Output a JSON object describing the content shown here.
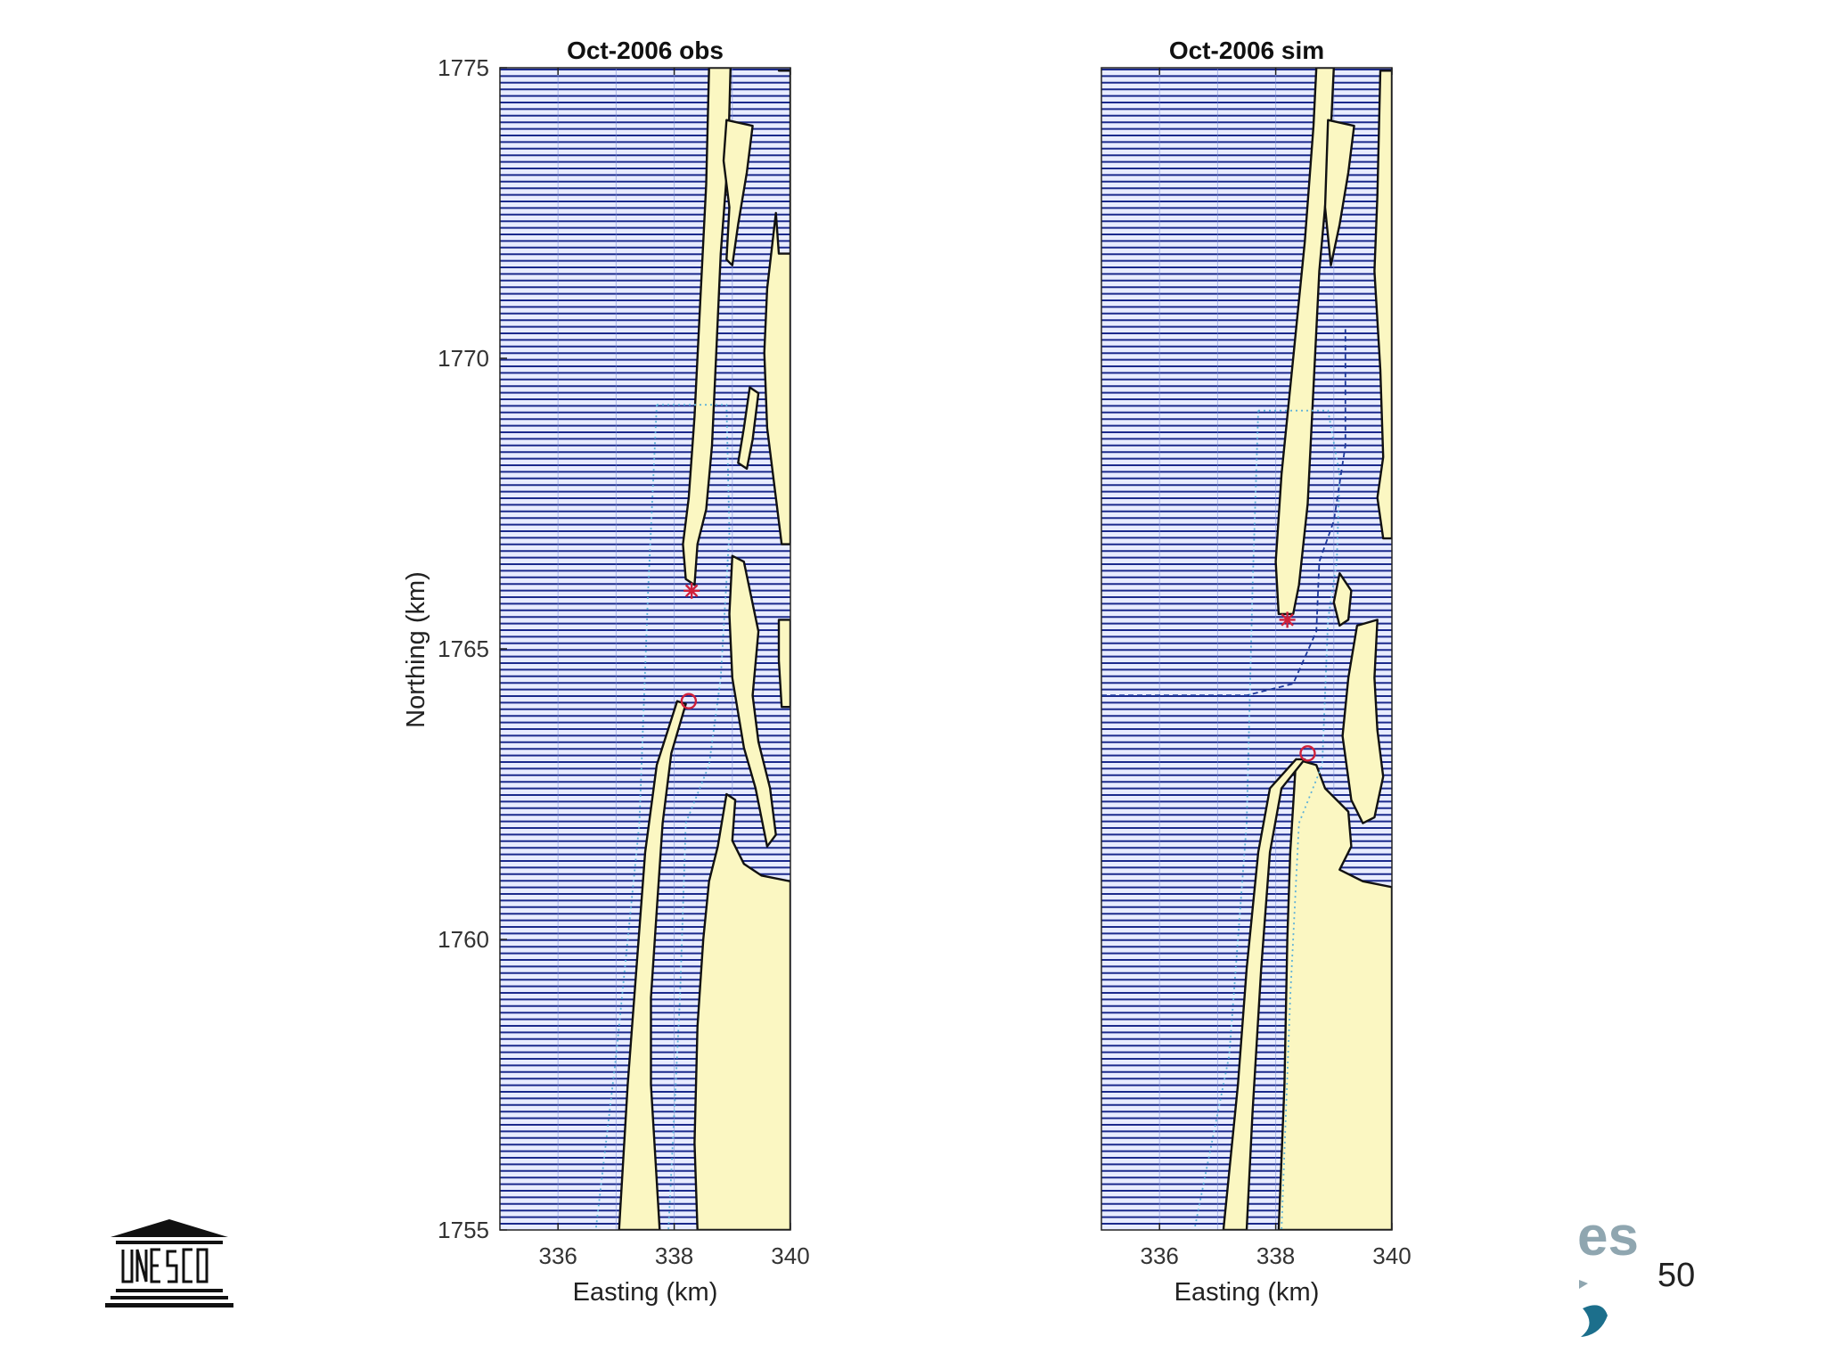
{
  "slide": {
    "page_number": "50",
    "logo_left_text": "UNESCO",
    "logo_right_text": "es"
  },
  "colors": {
    "water": "#1b2a8c",
    "water_background": "#e8ecff",
    "land": "#fbf7c2",
    "coastline": "#111111",
    "track": "#5fb2d8",
    "track_sim": "#1f3a9c",
    "marker": "#d0203a"
  },
  "chart_data": [
    {
      "type": "map",
      "title": "Oct-2006 obs",
      "xlabel": "Easting (km)",
      "ylabel": "Northing (km)",
      "xlim": [
        335,
        340
      ],
      "ylim": [
        1755,
        1775
      ],
      "xticks": [
        "336",
        "338",
        "340"
      ],
      "yticks": [
        "1755",
        "1760",
        "1765",
        "1770",
        "1775"
      ],
      "grid": false,
      "land": [
        {
          "name": "north-spit",
          "points": [
            [
              338.6,
              1775
            ],
            [
              338.97,
              1775
            ],
            [
              338.93,
              1773.5
            ],
            [
              338.8,
              1771.8
            ],
            [
              338.72,
              1770
            ],
            [
              338.65,
              1768.5
            ],
            [
              338.55,
              1767.4
            ],
            [
              338.4,
              1766.8
            ],
            [
              338.35,
              1766.1
            ],
            [
              338.2,
              1766.2
            ],
            [
              338.15,
              1766.8
            ],
            [
              338.25,
              1767.6
            ],
            [
              338.35,
              1769
            ],
            [
              338.45,
              1771
            ],
            [
              338.55,
              1773
            ],
            [
              338.6,
              1775
            ]
          ]
        },
        {
          "name": "north-islet",
          "points": [
            [
              338.9,
              1774.1
            ],
            [
              339.35,
              1774.0
            ],
            [
              339.25,
              1773.2
            ],
            [
              339.1,
              1772.3
            ],
            [
              339.0,
              1771.6
            ],
            [
              338.9,
              1771.7
            ],
            [
              338.95,
              1772.6
            ],
            [
              338.85,
              1773.4
            ],
            [
              338.9,
              1774.1
            ]
          ]
        },
        {
          "name": "east-bank-north",
          "points": [
            [
              339.8,
              1774.95
            ],
            [
              340,
              1774.95
            ],
            [
              340,
              1771.8
            ],
            [
              339.8,
              1771.8
            ],
            [
              339.75,
              1772.5
            ],
            [
              339.6,
              1771.2
            ],
            [
              339.55,
              1770.1
            ],
            [
              339.6,
              1768.8
            ],
            [
              339.75,
              1767.6
            ],
            [
              339.85,
              1766.8
            ],
            [
              340,
              1766.8
            ],
            [
              340,
              1774.95
            ]
          ]
        },
        {
          "name": "east-islet-a",
          "points": [
            [
              339.3,
              1769.5
            ],
            [
              339.45,
              1769.4
            ],
            [
              339.35,
              1768.6
            ],
            [
              339.25,
              1768.1
            ],
            [
              339.1,
              1768.2
            ],
            [
              339.2,
              1768.8
            ],
            [
              339.3,
              1769.5
            ]
          ]
        },
        {
          "name": "east-islet-b",
          "points": [
            [
              339.0,
              1766.6
            ],
            [
              339.2,
              1766.5
            ],
            [
              339.45,
              1765.3
            ],
            [
              339.35,
              1764.2
            ],
            [
              339.45,
              1763.4
            ],
            [
              339.65,
              1762.6
            ],
            [
              339.75,
              1761.8
            ],
            [
              339.6,
              1761.6
            ],
            [
              339.4,
              1762.6
            ],
            [
              339.2,
              1763.3
            ],
            [
              339.0,
              1764.5
            ],
            [
              338.95,
              1765.6
            ],
            [
              339.0,
              1766.6
            ]
          ]
        },
        {
          "name": "east-bank-mid",
          "points": [
            [
              339.8,
              1765.5
            ],
            [
              340,
              1765.5
            ],
            [
              340,
              1764.0
            ],
            [
              339.85,
              1764.0
            ],
            [
              339.8,
              1764.8
            ],
            [
              339.8,
              1765.5
            ]
          ]
        },
        {
          "name": "south-spit",
          "points": [
            [
              338.05,
              1764.1
            ],
            [
              338.2,
              1764.05
            ],
            [
              337.95,
              1763.2
            ],
            [
              337.8,
              1762.0
            ],
            [
              337.7,
              1760.5
            ],
            [
              337.6,
              1759
            ],
            [
              337.6,
              1757.5
            ],
            [
              337.75,
              1755
            ],
            [
              337.05,
              1755
            ],
            [
              337.2,
              1757.5
            ],
            [
              337.35,
              1759.5
            ],
            [
              337.5,
              1761.5
            ],
            [
              337.7,
              1763
            ],
            [
              338.05,
              1764.1
            ]
          ]
        },
        {
          "name": "south-mainland",
          "points": [
            [
              338.9,
              1762.5
            ],
            [
              339.05,
              1762.4
            ],
            [
              339.0,
              1761.7
            ],
            [
              339.2,
              1761.3
            ],
            [
              339.5,
              1761.1
            ],
            [
              340,
              1761.0
            ],
            [
              340,
              1755
            ],
            [
              338.4,
              1755
            ],
            [
              338.35,
              1756.5
            ],
            [
              338.4,
              1758.5
            ],
            [
              338.5,
              1760.0
            ],
            [
              338.6,
              1761.0
            ],
            [
              338.75,
              1761.6
            ],
            [
              338.9,
              1762.5
            ]
          ]
        }
      ],
      "tracks": [
        {
          "name": "track-1",
          "style": "dotted",
          "points": [
            [
              337.7,
              1769.2
            ],
            [
              338.9,
              1769.2
            ],
            [
              338.95,
              1767
            ],
            [
              338.8,
              1764.5
            ],
            [
              338.6,
              1763
            ],
            [
              338.2,
              1762
            ],
            [
              338.1,
              1759
            ],
            [
              337.9,
              1755
            ]
          ]
        },
        {
          "name": "track-2",
          "style": "dotted",
          "points": [
            [
              337.7,
              1769.2
            ],
            [
              337.55,
              1766
            ],
            [
              337.4,
              1762
            ],
            [
              337.0,
              1758
            ],
            [
              336.65,
              1755
            ]
          ]
        }
      ],
      "markers": [
        {
          "type": "star",
          "x": 338.3,
          "y": 1766.0
        },
        {
          "type": "circle",
          "x": 338.25,
          "y": 1764.1
        }
      ]
    },
    {
      "type": "map",
      "title": "Oct-2006 sim",
      "xlabel": "Easting (km)",
      "ylabel": "",
      "xlim": [
        335,
        340
      ],
      "ylim": [
        1755,
        1775
      ],
      "xticks": [
        "336",
        "338",
        "340"
      ],
      "yticks": [],
      "grid": false,
      "land": [
        {
          "name": "north-spit",
          "points": [
            [
              338.7,
              1775
            ],
            [
              339.0,
              1775
            ],
            [
              338.93,
              1773.5
            ],
            [
              338.75,
              1771.5
            ],
            [
              338.65,
              1769.5
            ],
            [
              338.55,
              1767.5
            ],
            [
              338.4,
              1766.1
            ],
            [
              338.3,
              1765.6
            ],
            [
              338.05,
              1765.6
            ],
            [
              338.0,
              1766.5
            ],
            [
              338.1,
              1768
            ],
            [
              338.3,
              1770
            ],
            [
              338.5,
              1772
            ],
            [
              338.65,
              1774
            ],
            [
              338.7,
              1775
            ]
          ]
        },
        {
          "name": "north-islet",
          "points": [
            [
              338.9,
              1774.1
            ],
            [
              339.35,
              1774.0
            ],
            [
              339.25,
              1773.2
            ],
            [
              339.1,
              1772.3
            ],
            [
              338.95,
              1771.6
            ],
            [
              338.85,
              1772.6
            ],
            [
              338.9,
              1774.1
            ]
          ]
        },
        {
          "name": "east-bank-north",
          "points": [
            [
              339.8,
              1774.95
            ],
            [
              340,
              1774.95
            ],
            [
              340,
              1766.9
            ],
            [
              339.85,
              1766.9
            ],
            [
              339.75,
              1767.6
            ],
            [
              339.85,
              1768.3
            ],
            [
              339.8,
              1769.8
            ],
            [
              339.7,
              1771.5
            ],
            [
              339.75,
              1772.8
            ],
            [
              339.8,
              1774.95
            ]
          ]
        },
        {
          "name": "east-islet-a",
          "points": [
            [
              339.1,
              1766.3
            ],
            [
              339.3,
              1766.0
            ],
            [
              339.25,
              1765.5
            ],
            [
              339.1,
              1765.4
            ],
            [
              339.0,
              1765.8
            ],
            [
              339.1,
              1766.3
            ]
          ]
        },
        {
          "name": "east-islet-b",
          "points": [
            [
              339.4,
              1765.4
            ],
            [
              339.75,
              1765.5
            ],
            [
              339.7,
              1764.5
            ],
            [
              339.75,
              1763.6
            ],
            [
              339.85,
              1762.8
            ],
            [
              339.7,
              1762.1
            ],
            [
              339.5,
              1762.0
            ],
            [
              339.3,
              1762.4
            ],
            [
              339.15,
              1763.5
            ],
            [
              339.25,
              1764.5
            ],
            [
              339.4,
              1765.4
            ]
          ]
        },
        {
          "name": "south-mainland",
          "points": [
            [
              338.35,
              1763.1
            ],
            [
              338.7,
              1763.0
            ],
            [
              338.85,
              1762.6
            ],
            [
              339.25,
              1762.2
            ],
            [
              339.3,
              1761.6
            ],
            [
              339.1,
              1761.2
            ],
            [
              339.5,
              1761.0
            ],
            [
              340,
              1760.9
            ],
            [
              340,
              1755
            ],
            [
              338.05,
              1755
            ],
            [
              338.15,
              1757.5
            ],
            [
              338.2,
              1760.0
            ],
            [
              338.25,
              1761.5
            ],
            [
              338.35,
              1763.1
            ]
          ]
        },
        {
          "name": "south-spit",
          "points": [
            [
              338.5,
              1763.1
            ],
            [
              338.35,
              1763.1
            ],
            [
              337.9,
              1762.6
            ],
            [
              337.7,
              1761.5
            ],
            [
              337.5,
              1759.5
            ],
            [
              337.35,
              1757.5
            ],
            [
              337.1,
              1755
            ],
            [
              337.5,
              1755
            ],
            [
              337.6,
              1757
            ],
            [
              337.75,
              1759.5
            ],
            [
              337.9,
              1761.5
            ],
            [
              338.1,
              1762.6
            ],
            [
              338.5,
              1763.1
            ]
          ]
        }
      ],
      "tracks": [
        {
          "name": "track-1",
          "style": "dotted",
          "points": [
            [
              337.7,
              1769.1
            ],
            [
              338.9,
              1769.1
            ],
            [
              339.1,
              1768
            ],
            [
              339.05,
              1766.5
            ],
            [
              338.9,
              1765.5
            ],
            [
              338.8,
              1763
            ],
            [
              338.4,
              1762
            ],
            [
              338.25,
              1759
            ],
            [
              338.1,
              1755
            ]
          ]
        },
        {
          "name": "track-2",
          "style": "dotted",
          "points": [
            [
              337.7,
              1769.1
            ],
            [
              337.6,
              1766
            ],
            [
              337.5,
              1762
            ],
            [
              337.2,
              1758
            ],
            [
              336.6,
              1755
            ]
          ]
        },
        {
          "name": "track-sim",
          "style": "dashed",
          "points": [
            [
              335,
              1764.2
            ],
            [
              337.5,
              1764.2
            ],
            [
              338.3,
              1764.4
            ],
            [
              338.7,
              1765.3
            ],
            [
              338.75,
              1766.5
            ],
            [
              339.0,
              1767.2
            ],
            [
              339.2,
              1768.5
            ],
            [
              339.2,
              1770.5
            ]
          ]
        }
      ],
      "markers": [
        {
          "type": "star",
          "x": 338.2,
          "y": 1765.5
        },
        {
          "type": "circle",
          "x": 338.55,
          "y": 1763.2
        }
      ]
    }
  ]
}
